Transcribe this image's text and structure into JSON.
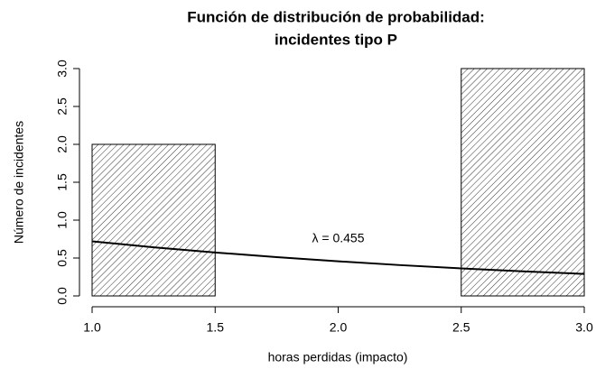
{
  "chart_data": {
    "type": "histogram",
    "title": [
      "Función de distribución de probabilidad:",
      "incidentes tipo P"
    ],
    "xlabel": "horas perdidas (impacto)",
    "ylabel": "Número de incidentes",
    "bins": [
      1.0,
      1.5,
      2.0,
      2.5,
      3.0
    ],
    "counts": [
      2,
      0,
      0,
      3
    ],
    "xlim": [
      1,
      3
    ],
    "ylim": [
      0,
      3
    ],
    "xticks": [
      {
        "value": 1,
        "label": "1.0"
      },
      {
        "value": 1.5,
        "label": "1.5"
      },
      {
        "value": 2,
        "label": "2.0"
      },
      {
        "value": 2.5,
        "label": "2.5"
      },
      {
        "value": 3,
        "label": "3.0"
      }
    ],
    "yticks": [
      {
        "value": 0,
        "label": "0.0"
      },
      {
        "value": 0.5,
        "label": "0.5"
      },
      {
        "value": 1,
        "label": "1.0"
      },
      {
        "value": 1.5,
        "label": "1.5"
      },
      {
        "value": 2,
        "label": "2.0"
      },
      {
        "value": 2.5,
        "label": "2.5"
      },
      {
        "value": 3,
        "label": "3.0"
      }
    ],
    "curve": {
      "x": [
        1.0,
        1.25,
        1.5,
        1.75,
        2.0,
        2.25,
        2.5,
        2.75,
        3.0
      ],
      "values": [
        0.72,
        0.642,
        0.573,
        0.512,
        0.457,
        0.407,
        0.363,
        0.324,
        0.29
      ],
      "color": "#000000"
    },
    "annotation": {
      "text": "λ = 0.455",
      "x": 2.0,
      "y": 0.75
    },
    "color": "#000000"
  }
}
